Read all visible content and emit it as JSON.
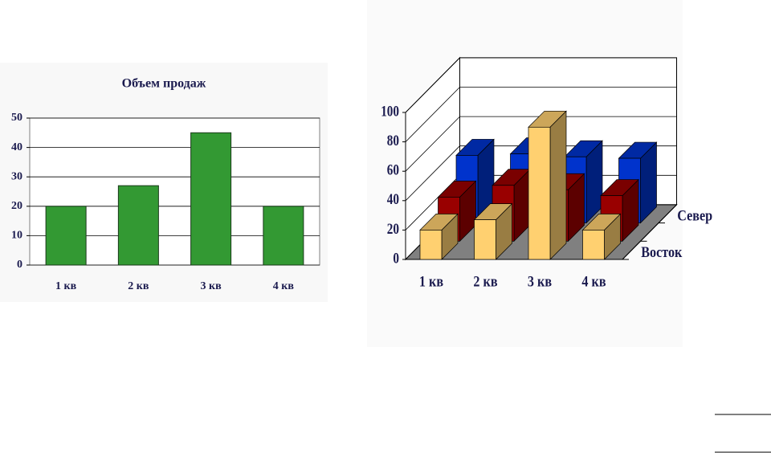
{
  "chart_data": [
    {
      "type": "bar",
      "title": "Объем продаж",
      "categories": [
        "1 кв",
        "2 кв",
        "3 кв",
        "4 кв"
      ],
      "values": [
        20,
        27,
        45,
        20
      ],
      "color": "#339933",
      "ylim": [
        0,
        50
      ],
      "yticks": [
        0,
        10,
        20,
        30,
        40,
        50
      ],
      "grid": true
    },
    {
      "type": "bar3d",
      "categories": [
        "1 кв",
        "2 кв",
        "3 кв",
        "4 кв"
      ],
      "series": [
        {
          "name": "Восток",
          "color": "#ffd070",
          "values": [
            20,
            27,
            90,
            20
          ]
        },
        {
          "name": null,
          "color": "#990000",
          "values": [
            30,
            38,
            35,
            31
          ]
        },
        {
          "name": "Север",
          "color": "#0033cc",
          "values": [
            46,
            47,
            45,
            44
          ]
        }
      ],
      "ylim": [
        0,
        100
      ],
      "yticks": [
        0,
        20,
        40,
        60,
        80,
        100
      ],
      "grid": true
    }
  ]
}
